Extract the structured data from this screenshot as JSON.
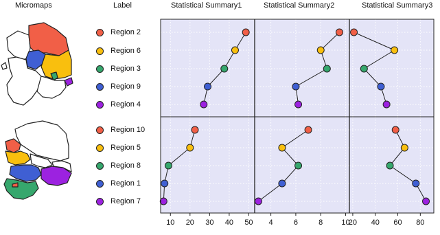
{
  "headers": {
    "micromaps": "Micromaps",
    "label": "Label",
    "summary1": "Statistical Summary1",
    "summary2": "Statistical Summary2",
    "summary3": "Statistical Summary3"
  },
  "colors": {
    "panel_bg": "#e4e4f7",
    "red": "#f15f47",
    "orange": "#f9bf0e",
    "green": "#36a76d",
    "blue": "#3f5fd3",
    "purple": "#9c22e0",
    "map_fill": "#ffffff"
  },
  "groups": [
    {
      "regions": [
        {
          "label": "Region 2",
          "color": "red"
        },
        {
          "label": "Region 6",
          "color": "orange"
        },
        {
          "label": "Region 3",
          "color": "green"
        },
        {
          "label": "Region 9",
          "color": "blue"
        },
        {
          "label": "Region 4",
          "color": "purple"
        }
      ]
    },
    {
      "regions": [
        {
          "label": "Region 10",
          "color": "red"
        },
        {
          "label": "Region 5",
          "color": "orange"
        },
        {
          "label": "Region 8",
          "color": "green"
        },
        {
          "label": "Region 1",
          "color": "blue"
        },
        {
          "label": "Region 7",
          "color": "purple"
        }
      ]
    }
  ],
  "chart_data": {
    "type": "scatter",
    "grid": true,
    "panels": [
      {
        "title": "Statistical Summary1",
        "xlim": [
          5,
          53
        ],
        "ticks": [
          10,
          20,
          30,
          40,
          50
        ],
        "tick_labels": [
          "10",
          "20",
          "30",
          "40",
          "50"
        ],
        "top": [
          48.5,
          43,
          37.5,
          29,
          27
        ],
        "bottom": [
          22.5,
          20,
          9,
          7,
          6.5
        ]
      },
      {
        "title": "Statistical Summary2",
        "xlim": [
          2.7,
          10.3
        ],
        "ticks": [
          4,
          6,
          8,
          10
        ],
        "tick_labels": [
          "4",
          "6",
          "8",
          "10"
        ],
        "top": [
          9.5,
          8,
          8.5,
          6,
          6.2
        ],
        "bottom": [
          7,
          4.9,
          6.2,
          4.9,
          3
        ]
      },
      {
        "title": "Statistical Summary3",
        "xlim": [
          17,
          92
        ],
        "ticks": [
          20,
          40,
          60,
          80
        ],
        "tick_labels": [
          "20",
          "40",
          "60",
          "80"
        ],
        "top": [
          21,
          57,
          30,
          45,
          50
        ],
        "bottom": [
          58,
          66,
          53,
          76,
          85
        ]
      }
    ]
  }
}
